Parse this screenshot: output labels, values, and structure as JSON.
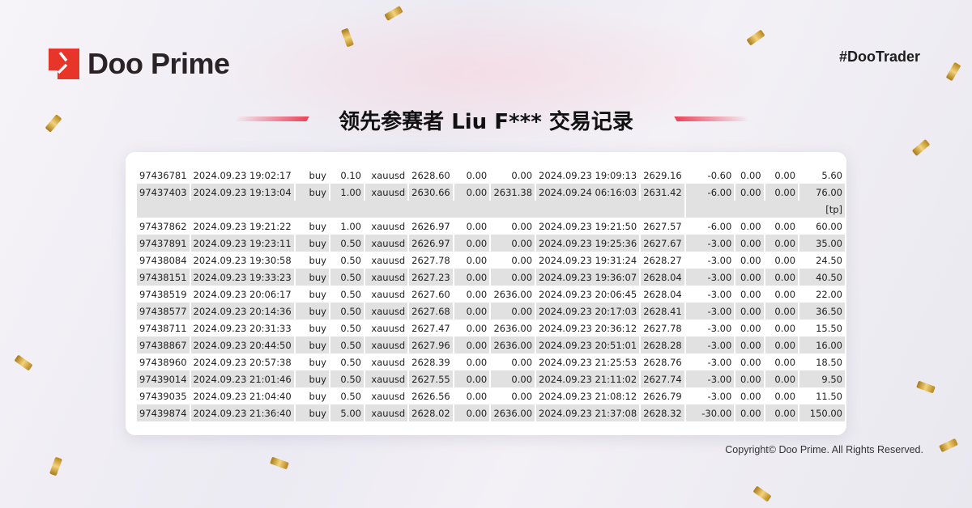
{
  "brand": {
    "name": "Doo Prime",
    "accent": "#e8352a",
    "hashtag": "#DooTrader"
  },
  "title": "领先参赛者 Liu F*** 交易记录",
  "copyright": "Copyright© Doo Prime. All Rights Reserved.",
  "trades": [
    [
      "97436781",
      "2024.09.23 19:02:17",
      "buy",
      "0.10",
      "xauusd",
      "2628.60",
      "0.00",
      "0.00",
      "2024.09.23 19:09:13",
      "2629.16",
      "-0.60",
      "0.00",
      "0.00",
      "5.60"
    ],
    [
      "97437403",
      "2024.09.23 19:13:04",
      "buy",
      "1.00",
      "xauusd",
      "2630.66",
      "0.00",
      "2631.38",
      "2024.09.24 06:16:03",
      "2631.42",
      "-6.00",
      "0.00",
      "0.00",
      "76.00"
    ],
    {
      "note": "[tp]"
    },
    [
      "97437862",
      "2024.09.23 19:21:22",
      "buy",
      "1.00",
      "xauusd",
      "2626.97",
      "0.00",
      "0.00",
      "2024.09.23 19:21:50",
      "2627.57",
      "-6.00",
      "0.00",
      "0.00",
      "60.00"
    ],
    [
      "97437891",
      "2024.09.23 19:23:11",
      "buy",
      "0.50",
      "xauusd",
      "2626.97",
      "0.00",
      "0.00",
      "2024.09.23 19:25:36",
      "2627.67",
      "-3.00",
      "0.00",
      "0.00",
      "35.00"
    ],
    [
      "97438084",
      "2024.09.23 19:30:58",
      "buy",
      "0.50",
      "xauusd",
      "2627.78",
      "0.00",
      "0.00",
      "2024.09.23 19:31:24",
      "2628.27",
      "-3.00",
      "0.00",
      "0.00",
      "24.50"
    ],
    [
      "97438151",
      "2024.09.23 19:33:23",
      "buy",
      "0.50",
      "xauusd",
      "2627.23",
      "0.00",
      "0.00",
      "2024.09.23 19:36:07",
      "2628.04",
      "-3.00",
      "0.00",
      "0.00",
      "40.50"
    ],
    [
      "97438519",
      "2024.09.23 20:06:17",
      "buy",
      "0.50",
      "xauusd",
      "2627.60",
      "0.00",
      "2636.00",
      "2024.09.23 20:06:45",
      "2628.04",
      "-3.00",
      "0.00",
      "0.00",
      "22.00"
    ],
    [
      "97438577",
      "2024.09.23 20:14:36",
      "buy",
      "0.50",
      "xauusd",
      "2627.68",
      "0.00",
      "0.00",
      "2024.09.23 20:17:03",
      "2628.41",
      "-3.00",
      "0.00",
      "0.00",
      "36.50"
    ],
    [
      "97438711",
      "2024.09.23 20:31:33",
      "buy",
      "0.50",
      "xauusd",
      "2627.47",
      "0.00",
      "2636.00",
      "2024.09.23 20:36:12",
      "2627.78",
      "-3.00",
      "0.00",
      "0.00",
      "15.50"
    ],
    [
      "97438867",
      "2024.09.23 20:44:50",
      "buy",
      "0.50",
      "xauusd",
      "2627.96",
      "0.00",
      "2636.00",
      "2024.09.23 20:51:01",
      "2628.28",
      "-3.00",
      "0.00",
      "0.00",
      "16.00"
    ],
    [
      "97438960",
      "2024.09.23 20:57:38",
      "buy",
      "0.50",
      "xauusd",
      "2628.39",
      "0.00",
      "0.00",
      "2024.09.23 21:25:53",
      "2628.76",
      "-3.00",
      "0.00",
      "0.00",
      "18.50"
    ],
    [
      "97439014",
      "2024.09.23 21:01:46",
      "buy",
      "0.50",
      "xauusd",
      "2627.55",
      "0.00",
      "0.00",
      "2024.09.23 21:11:02",
      "2627.74",
      "-3.00",
      "0.00",
      "0.00",
      "9.50"
    ],
    [
      "97439035",
      "2024.09.23 21:04:40",
      "buy",
      "0.50",
      "xauusd",
      "2626.56",
      "0.00",
      "0.00",
      "2024.09.23 21:08:12",
      "2626.79",
      "-3.00",
      "0.00",
      "0.00",
      "11.50"
    ],
    [
      "97439874",
      "2024.09.23 21:36:40",
      "buy",
      "5.00",
      "xauusd",
      "2628.02",
      "0.00",
      "2636.00",
      "2024.09.23 21:37:08",
      "2628.32",
      "-30.00",
      "0.00",
      "0.00",
      "150.00"
    ]
  ]
}
